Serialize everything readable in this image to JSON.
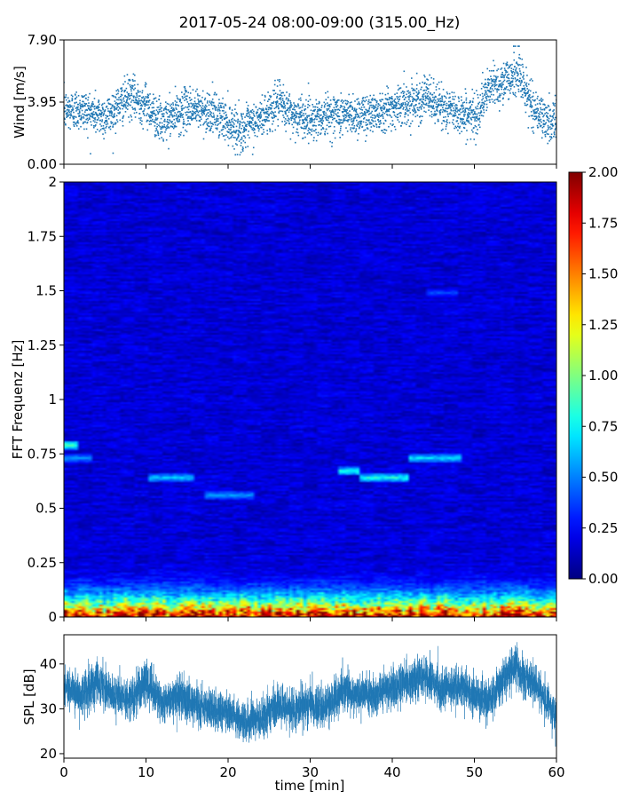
{
  "figure": {
    "title": "2017-05-24 08:00-09:00 (315.00_Hz)"
  },
  "colors": {
    "wind_marker": "#1f77b4",
    "spl_line": "#1f77b4",
    "colormap": "jet"
  },
  "chart_data": [
    {
      "id": "wind",
      "type": "scatter",
      "ylabel": "Wind [m/s]",
      "xlim": [
        0,
        60
      ],
      "ylim": [
        0,
        7.9
      ],
      "yticks": [
        0,
        3.95,
        7.9
      ],
      "ytick_labels": [
        "0.00",
        "3.95",
        "7.90"
      ],
      "x_tick_labels_shown": false,
      "grid": false,
      "anchors_x_min": [
        0,
        2,
        5,
        8,
        10,
        12,
        15,
        18,
        20,
        21.5,
        24,
        26,
        28,
        30,
        33,
        36,
        39,
        42,
        44,
        46,
        48,
        50,
        52,
        54,
        55.5,
        57,
        59,
        60
      ],
      "anchors_mean_ms": [
        3.4,
        3.5,
        3.0,
        4.3,
        3.8,
        2.6,
        3.6,
        3.3,
        2.7,
        2.1,
        2.9,
        3.9,
        3.1,
        2.9,
        3.2,
        3.1,
        3.5,
        3.9,
        4.3,
        3.6,
        3.3,
        3.0,
        4.9,
        5.3,
        5.7,
        3.7,
        2.6,
        3.0
      ],
      "samples_per_min": 60,
      "peak_ms": 7.5
    },
    {
      "id": "spectrogram",
      "type": "heatmap",
      "ylabel": "FFT Frequenz [Hz]",
      "xlim": [
        0,
        60
      ],
      "ylim": [
        0,
        2
      ],
      "yticks": [
        0,
        0.25,
        0.5,
        0.75,
        1,
        1.25,
        1.5,
        1.75,
        2
      ],
      "ytick_labels": [
        "0",
        "0.25",
        "0.5",
        "0.75",
        "1",
        "1.25",
        "1.5",
        "1.75",
        "2"
      ],
      "x_tick_labels_shown": false,
      "colorbar": {
        "range": [
          0,
          2
        ],
        "ticks": [
          0,
          0.25,
          0.5,
          0.75,
          1,
          1.25,
          1.5,
          1.75,
          2
        ],
        "tick_labels": [
          "0.00",
          "0.25",
          "0.50",
          "0.75",
          "1.00",
          "1.25",
          "1.50",
          "1.75",
          "2.00"
        ]
      },
      "background_level": 0.2,
      "low_frequency_band": {
        "freq_max_hz": 0.25,
        "peak_value": 2.0,
        "at_freq_hz": 0.0
      },
      "tonal_features": [
        {
          "time_min": [
            0,
            1.8
          ],
          "freq_hz": 0.79,
          "value": 0.9
        },
        {
          "time_min": [
            0,
            3.5
          ],
          "freq_hz": 0.73,
          "value": 0.55
        },
        {
          "time_min": [
            10.5,
            16
          ],
          "freq_hz": 0.64,
          "value": 0.65
        },
        {
          "time_min": [
            17,
            23
          ],
          "freq_hz": 0.56,
          "value": 0.55
        },
        {
          "time_min": [
            33.5,
            36
          ],
          "freq_hz": 0.67,
          "value": 0.8
        },
        {
          "time_min": [
            36,
            42
          ],
          "freq_hz": 0.64,
          "value": 0.8
        },
        {
          "time_min": [
            42,
            48.5
          ],
          "freq_hz": 0.73,
          "value": 0.7
        },
        {
          "time_min": [
            44,
            48
          ],
          "freq_hz": 1.49,
          "value": 0.4
        }
      ]
    },
    {
      "id": "spl",
      "type": "line",
      "ylabel": "SPL [dB]",
      "xlabel": "time [min]",
      "xlim": [
        0,
        60
      ],
      "ylim": [
        19,
        46.5
      ],
      "xticks": [
        0,
        10,
        20,
        30,
        40,
        50,
        60
      ],
      "xtick_labels": [
        "0",
        "10",
        "20",
        "30",
        "40",
        "50",
        "60"
      ],
      "yticks": [
        20,
        30,
        40
      ],
      "ytick_labels": [
        "20",
        "30",
        "40"
      ],
      "grid": false,
      "anchors_x_min": [
        0,
        2,
        4,
        6,
        8,
        10,
        12,
        14,
        16,
        18,
        20,
        22,
        24,
        26,
        28,
        30,
        32,
        34,
        36,
        38,
        40,
        42,
        44,
        46,
        48,
        50,
        52,
        54,
        55,
        56,
        58,
        60
      ],
      "anchors_mean_db": [
        35,
        33,
        36,
        33,
        32,
        36,
        31,
        33,
        31,
        30,
        29,
        27,
        28,
        31,
        30,
        31,
        30,
        34,
        33,
        33,
        35,
        36,
        37,
        34,
        35,
        33,
        32,
        38,
        39,
        37,
        34,
        28
      ],
      "samples_per_min": 120,
      "spread_db": 4
    }
  ]
}
